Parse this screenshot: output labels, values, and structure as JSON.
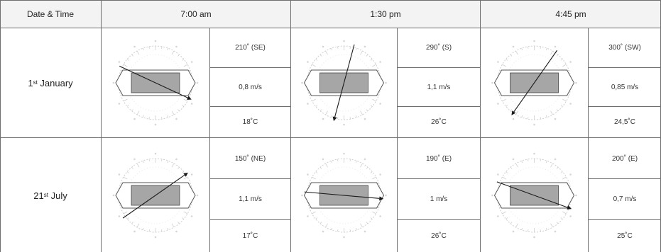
{
  "header": {
    "date_time": "Date & Time",
    "times": [
      "7:00 am",
      "1:30 pm",
      "4:45 pm"
    ]
  },
  "rows": [
    {
      "day": "1",
      "day_suffix": "st",
      "month": " January",
      "readings": [
        {
          "direction": "210˚ (SE)",
          "speed": "0,8 m/s",
          "temperature": "18˚C",
          "arrow_bearing_deg": 115
        },
        {
          "direction": "290˚ (S)",
          "speed": "1,1 m/s",
          "temperature": "26˚C",
          "arrow_bearing_deg": 195
        },
        {
          "direction": "300˚ (SW)",
          "speed": "0,85 m/s",
          "temperature": "24,5˚C",
          "arrow_bearing_deg": 215
        }
      ]
    },
    {
      "day": "21",
      "day_suffix": "st",
      "month": " July",
      "readings": [
        {
          "direction": "150˚ (NE)",
          "speed": "1,1 m/s",
          "temperature": "17˚C",
          "arrow_bearing_deg": 55
        },
        {
          "direction": "190˚ (E)",
          "speed": "1 m/s",
          "temperature": "26˚C",
          "arrow_bearing_deg": 95
        },
        {
          "direction": "200˚ (E)",
          "speed": "0,7 m/s",
          "temperature": "25˚C",
          "arrow_bearing_deg": 110
        }
      ]
    }
  ],
  "colors": {
    "grid": "#6e6e6e",
    "building": "#a6a6a6",
    "compass": "#cfcfcf",
    "arrow": "#1a1a1a"
  }
}
